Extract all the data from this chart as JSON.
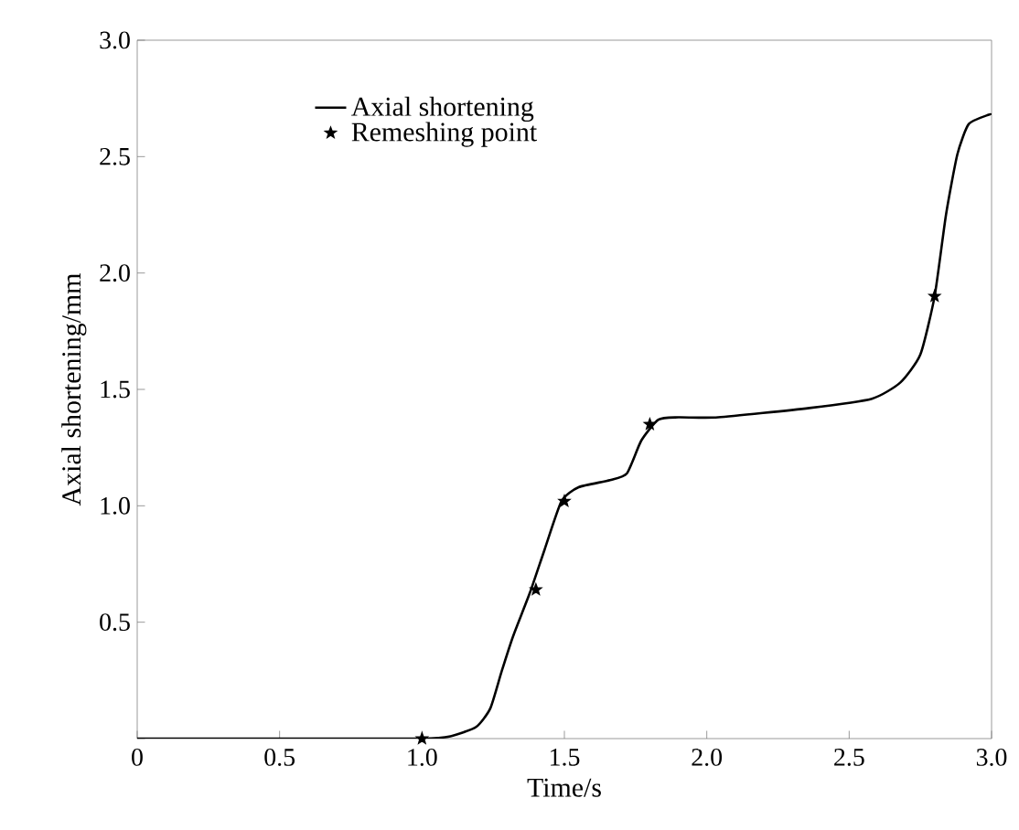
{
  "chart_data": {
    "type": "line",
    "xlabel": "Time/s",
    "ylabel": "Axial shortening/mm",
    "xlim": [
      0,
      3.0
    ],
    "ylim": [
      0,
      3.0
    ],
    "xticks": [
      0,
      {
        "value": 0.5,
        "label": "0.5"
      },
      {
        "value": 1,
        "label": "1.0"
      },
      {
        "value": 1.5,
        "label": "1.5"
      },
      {
        "value": 2,
        "label": "2.0"
      },
      {
        "value": 2.5,
        "label": "2.5"
      },
      {
        "value": 3,
        "label": "3.0"
      }
    ],
    "yticks": [
      {
        "value": 0,
        "label": null
      },
      {
        "value": 0.5,
        "label": "0.5"
      },
      {
        "value": 1,
        "label": "1.0"
      },
      {
        "value": 1.5,
        "label": "1.5"
      },
      {
        "value": 2,
        "label": "2.0"
      },
      {
        "value": 2.5,
        "label": "2.5"
      },
      {
        "value": 3,
        "label": "3.0"
      }
    ],
    "legend": "top left",
    "grid": false,
    "series": [
      {
        "name": "Axial shortening",
        "color": "#000000",
        "marker": "none",
        "x": [
          0,
          0.5,
          1.0,
          1.1,
          1.19,
          1.24,
          1.28,
          1.32,
          1.38,
          1.43,
          1.49,
          1.55,
          1.66,
          1.72,
          1.77,
          1.83,
          1.9,
          2.04,
          2.36,
          2.58,
          2.68,
          2.75,
          2.8,
          2.84,
          2.88,
          2.92,
          2.99,
          3.0
        ],
        "values": [
          0,
          0,
          0,
          0.01,
          0.05,
          0.13,
          0.29,
          0.44,
          0.63,
          0.81,
          1.02,
          1.08,
          1.11,
          1.14,
          1.28,
          1.37,
          1.38,
          1.38,
          1.42,
          1.46,
          1.53,
          1.65,
          1.9,
          2.25,
          2.51,
          2.64,
          2.68,
          2.68
        ]
      },
      {
        "name": "Remeshing point",
        "type": "scatter",
        "color": "#000000",
        "marker": "star",
        "x": [
          1.0,
          1.4,
          1.5,
          1.8,
          2.8
        ],
        "values": [
          0,
          0.64,
          1.02,
          1.35,
          1.9
        ]
      }
    ]
  }
}
